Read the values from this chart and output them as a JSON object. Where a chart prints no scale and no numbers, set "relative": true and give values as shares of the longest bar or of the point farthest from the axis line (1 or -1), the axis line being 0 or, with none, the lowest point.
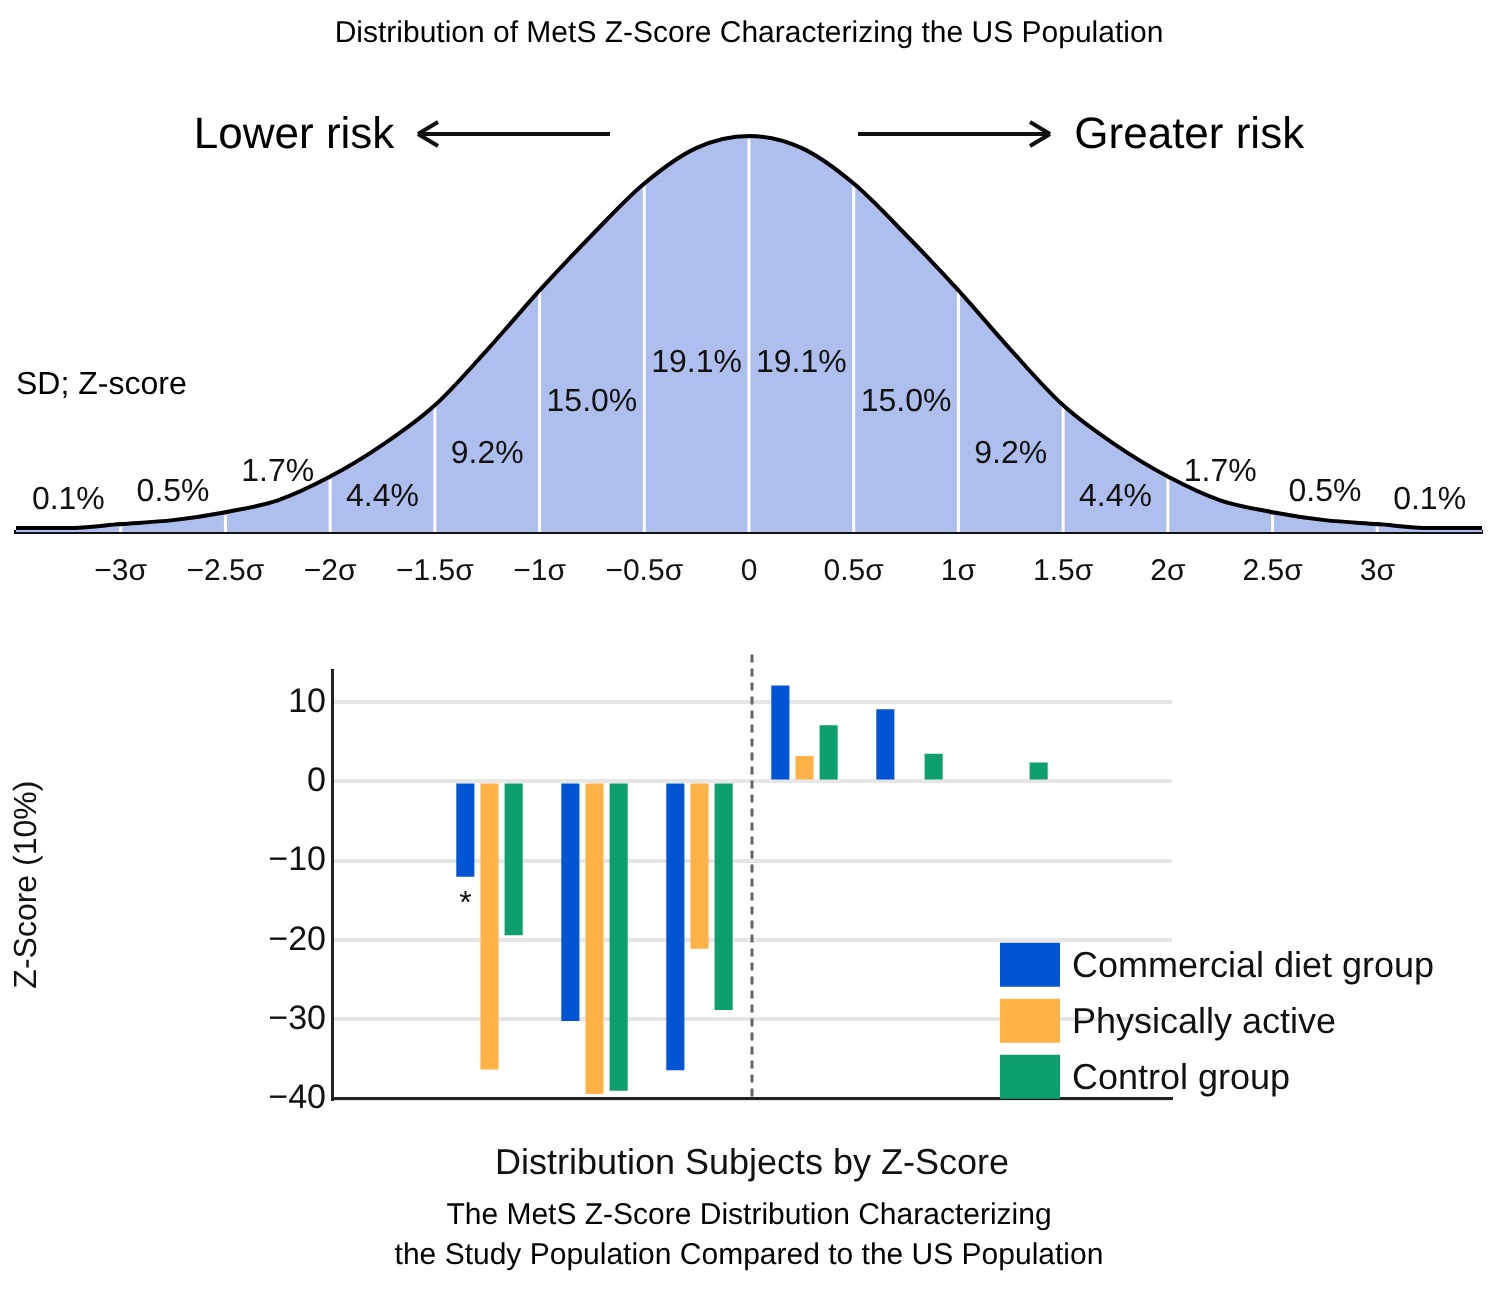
{
  "chart_data": [
    {
      "type": "area",
      "title": "Distribution of MetS Z-Score Characterizing the US Population",
      "ylabel": "SD; Z-score",
      "relative": true,
      "tick_labels": "x",
      "grid": false,
      "x": [
        -3.5,
        -3.25,
        -3,
        -2.75,
        -2.5,
        -2.25,
        -2,
        -1.75,
        -1.5,
        -1.25,
        -1,
        -0.75,
        -0.5,
        -0.25,
        0,
        0.25,
        0.5,
        0.75,
        1,
        1.25,
        1.5,
        1.75,
        2,
        2.25,
        2.5,
        2.75,
        3,
        3.25,
        3.5
      ],
      "series": [
        {
          "color": "#aebfee",
          "values": [
            0.01,
            0.01,
            0.02,
            0.03,
            0.05,
            0.08,
            0.14,
            0.22,
            0.32,
            0.46,
            0.61,
            0.75,
            0.88,
            0.97,
            1,
            0.97,
            0.88,
            0.75,
            0.61,
            0.46,
            0.32,
            0.22,
            0.14,
            0.08,
            0.05,
            0.03,
            0.02,
            0.01,
            0.01
          ]
        }
      ],
      "xlim": [
        -3.5,
        3.5
      ],
      "xticks": [
        {
          "value": -3,
          "label": "−3σ"
        },
        {
          "value": -2.5,
          "label": "−2.5σ"
        },
        {
          "value": -2,
          "label": "−2σ"
        },
        {
          "value": -1.5,
          "label": "−1.5σ"
        },
        {
          "value": -1,
          "label": "−1σ"
        },
        {
          "value": -0.5,
          "label": "−0.5σ"
        },
        0,
        {
          "value": 0.5,
          "label": "0.5σ"
        },
        {
          "value": 1,
          "label": "1σ"
        },
        {
          "value": 1.5,
          "label": "1.5σ"
        },
        {
          "value": 2,
          "label": "2σ"
        },
        {
          "value": 2.5,
          "label": "2.5σ"
        },
        {
          "value": 3,
          "label": "3σ"
        }
      ],
      "ref_lines": [
        {
          "axis": "x",
          "value": -3,
          "color": "#ffffff"
        },
        {
          "axis": "x",
          "value": -2.5,
          "color": "#ffffff"
        },
        {
          "axis": "x",
          "value": -2,
          "color": "#ffffff"
        },
        {
          "axis": "x",
          "value": -1.5,
          "color": "#ffffff"
        },
        {
          "axis": "x",
          "value": -1,
          "color": "#ffffff"
        },
        {
          "axis": "x",
          "value": -0.5,
          "color": "#ffffff"
        },
        {
          "axis": "x",
          "value": 0,
          "color": "#ffffff"
        },
        {
          "axis": "x",
          "value": 0.5,
          "color": "#ffffff"
        },
        {
          "axis": "x",
          "value": 1,
          "color": "#ffffff"
        },
        {
          "axis": "x",
          "value": 1.5,
          "color": "#ffffff"
        },
        {
          "axis": "x",
          "value": 2,
          "color": "#ffffff"
        },
        {
          "axis": "x",
          "value": 2.5,
          "color": "#ffffff"
        },
        {
          "axis": "x",
          "value": 3,
          "color": "#ffffff"
        }
      ],
      "annotations": [
        "Lower risk",
        "Greater risk",
        "0.1%",
        "0.5%",
        "1.7%",
        "4.4%",
        "9.2%",
        "15.0%",
        "19.1%",
        "19.1%",
        "15.0%",
        "9.2%",
        "4.4%",
        "1.7%",
        "0.5%",
        "0.1%"
      ]
    },
    {
      "type": "bar",
      "xlabel": "Distribution Subjects by Z-Score",
      "ylabel": "Z-Score (10%)",
      "categories": [
        null,
        null,
        null,
        null,
        null,
        null,
        null,
        null
      ],
      "series": [
        {
          "name": "Commercial diet group",
          "color": "#0055d4",
          "values": [
            null,
            -12.0,
            -30.2,
            -36.4,
            12.1,
            9.1,
            null,
            null
          ],
          "value_labels": [
            null,
            "*",
            null,
            null,
            null,
            null,
            null,
            null
          ]
        },
        {
          "name": "Physically active",
          "color": "#ffb347",
          "values": [
            null,
            -36.3,
            -39.4,
            -21.1,
            3.2,
            null,
            null,
            null
          ]
        },
        {
          "name": "Control group",
          "color": "#0e9f6e",
          "values": [
            null,
            -19.4,
            -39.0,
            -28.8,
            7.1,
            3.5,
            2.4,
            null
          ]
        }
      ],
      "ylim": [
        -40,
        14
      ],
      "yticks": [
        -40,
        -30,
        -20,
        -10,
        0,
        10
      ],
      "grid": "y",
      "legend": "bottom right",
      "annotations": [
        "The MetS Z-Score Distribution Characterizing",
        "the Study Population Compared to the US Population"
      ]
    }
  ]
}
